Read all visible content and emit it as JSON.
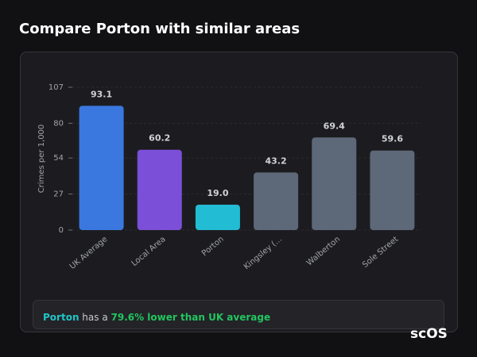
{
  "title": "Compare Porton with similar areas",
  "chart_data": {
    "type": "bar",
    "y_label": "Crimes per 1,000",
    "categories": [
      "UK Average",
      "Local Area",
      "Porton",
      "Kingsley (...",
      "Walberton",
      "Sole Street"
    ],
    "values": [
      93.1,
      60.2,
      19,
      43.2,
      69.4,
      59.6
    ],
    "value_labels": [
      "93.1",
      "60.2",
      "19.0",
      "43.2",
      "69.4",
      "59.6"
    ],
    "colors": [
      "#3a78e0",
      "#7b4fd8",
      "#22bcd4",
      "#5d6878",
      "#5d6878",
      "#5d6878"
    ],
    "ylim": [
      0,
      107
    ],
    "yticks": [
      0,
      27,
      54,
      80,
      107
    ],
    "grid": true
  },
  "note": {
    "area": "Porton",
    "text": " has a ",
    "highlight": "79.6% lower than UK average"
  },
  "logo": "scOS"
}
